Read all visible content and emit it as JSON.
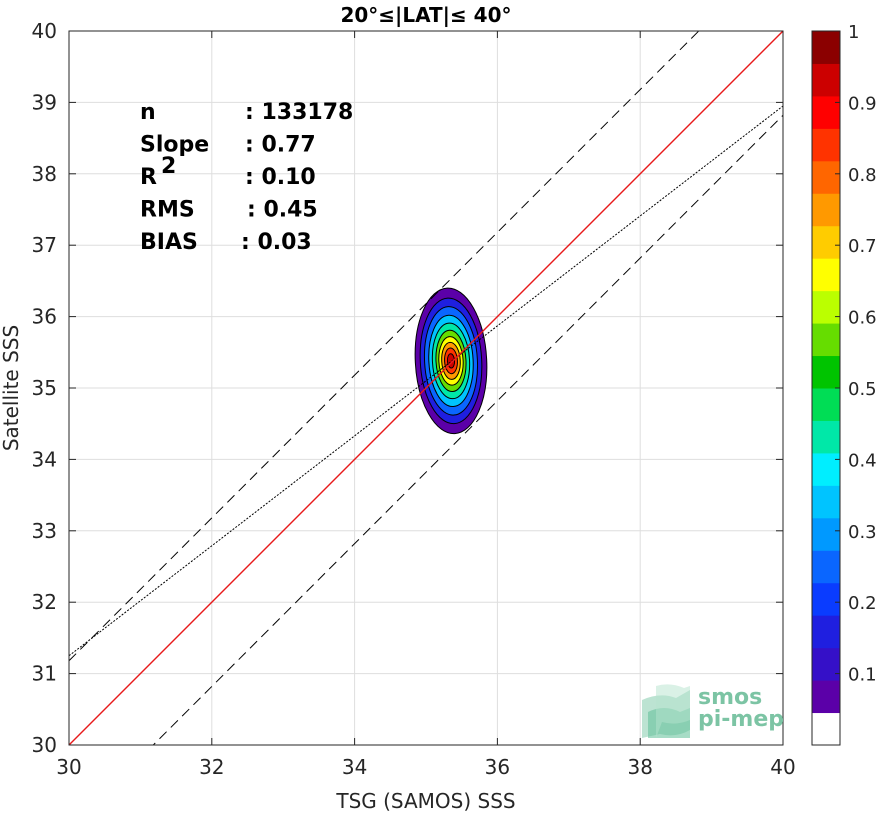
{
  "chart_data": {
    "type": "contour-scatter",
    "title": "20°≤|LAT|≤ 40°",
    "xlabel": "TSG (SAMOS) SSS",
    "ylabel": "Satellite SSS",
    "xlim": [
      30,
      40
    ],
    "ylim": [
      30,
      40
    ],
    "xticks": [
      "30",
      "32",
      "34",
      "36",
      "38",
      "40"
    ],
    "yticks": [
      "30",
      "31",
      "32",
      "33",
      "34",
      "35",
      "36",
      "37",
      "38",
      "39",
      "40"
    ],
    "grid": true,
    "stats": [
      {
        "label": "n",
        "value": ": 133178"
      },
      {
        "label": "Slope",
        "value": ": 0.77"
      },
      {
        "label": "R",
        "label_sup": "2",
        "value": ": 0.10"
      },
      {
        "label": "RMS",
        "value": ": 0.45"
      },
      {
        "label": "BIAS",
        "value": ": 0.03"
      }
    ],
    "lines": {
      "identity": {
        "slope": 1.0,
        "intercept": 0.0,
        "color": "#e8191b"
      },
      "regression": {
        "slope": 0.77,
        "intercept": 8.15,
        "color": "#000000"
      },
      "upper_bound": {
        "slope": 1.0,
        "intercept": 1.18,
        "color": "#000000"
      },
      "lower_bound": {
        "slope": 1.0,
        "intercept": -1.18,
        "color": "#000000"
      }
    },
    "density_center": {
      "x": 35.35,
      "y": 35.38
    },
    "density_levels": [
      {
        "level": 0.05,
        "rx": 0.5,
        "ry": 1.02
      },
      {
        "level": 0.15,
        "rx": 0.43,
        "ry": 0.88
      },
      {
        "level": 0.25,
        "rx": 0.37,
        "ry": 0.76
      },
      {
        "level": 0.35,
        "rx": 0.31,
        "ry": 0.64
      },
      {
        "level": 0.45,
        "rx": 0.26,
        "ry": 0.53
      },
      {
        "level": 0.55,
        "rx": 0.21,
        "ry": 0.43
      },
      {
        "level": 0.65,
        "rx": 0.17,
        "ry": 0.34
      },
      {
        "level": 0.75,
        "rx": 0.13,
        "ry": 0.26
      },
      {
        "level": 0.85,
        "rx": 0.09,
        "ry": 0.18
      },
      {
        "level": 0.95,
        "rx": 0.05,
        "ry": 0.1
      }
    ],
    "colorbar": {
      "ticks": [
        "0.1",
        "0.2",
        "0.3",
        "0.4",
        "0.5",
        "0.6",
        "0.7",
        "0.8",
        "0.9",
        "1"
      ],
      "colors": [
        "#ffffff",
        "#5b00a8",
        "#3510c8",
        "#1f1fe0",
        "#0a3cff",
        "#0a66ff",
        "#0099ff",
        "#00c4ff",
        "#00eeff",
        "#00e8a8",
        "#00dd55",
        "#00c400",
        "#66dd00",
        "#bbff00",
        "#ffff00",
        "#ffcc00",
        "#ff9900",
        "#ff6600",
        "#ff3300",
        "#ff0000",
        "#cc0000",
        "#8b0000"
      ]
    },
    "watermark": {
      "line1": "smos",
      "line2": "pi-mep"
    }
  }
}
